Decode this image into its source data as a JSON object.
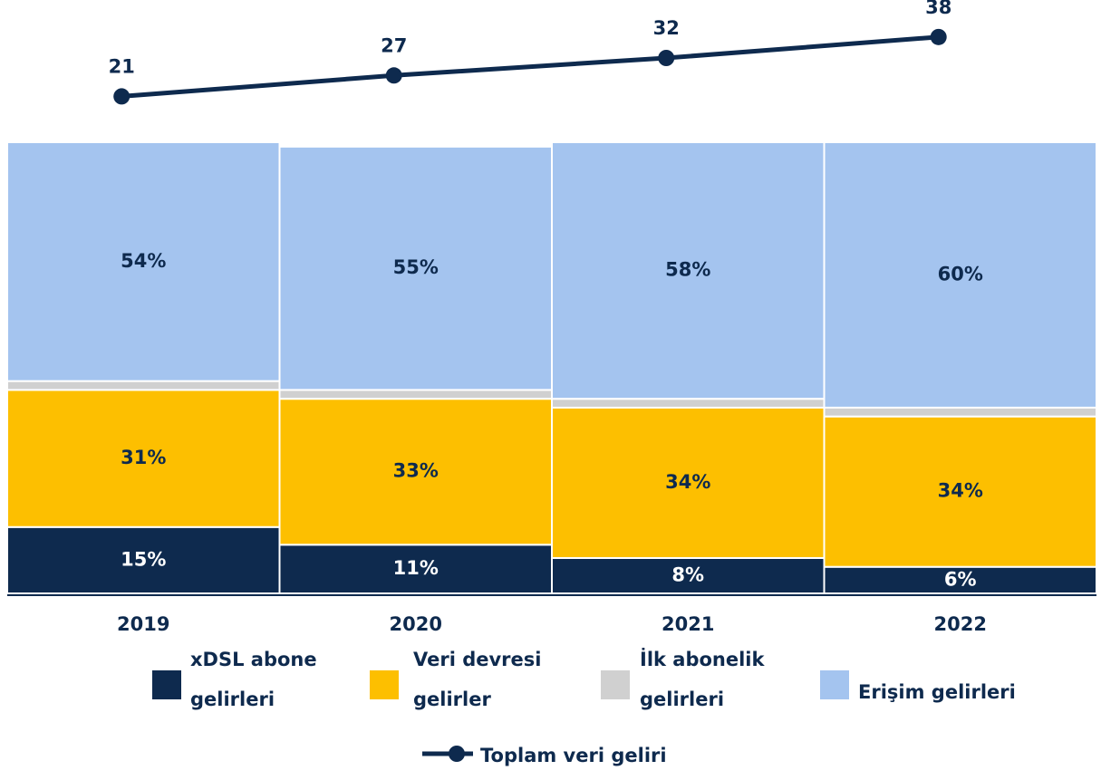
{
  "chart_data": {
    "type": "bar",
    "stacked": true,
    "categories": [
      "2019",
      "2020",
      "2021",
      "2022"
    ],
    "ylim": [
      0,
      102
    ],
    "y2lim": [
      11,
      46
    ],
    "series": [
      {
        "name": "xDSL abone gelirleri",
        "color": "#0e2a4e",
        "values": [
          15,
          11,
          8,
          6
        ],
        "value_labels": [
          "15%",
          "11%",
          "8%",
          "6%"
        ]
      },
      {
        "name": "Veri devresi gelirler",
        "color": "#fdbf00",
        "values": [
          31,
          33,
          34,
          34
        ],
        "value_labels": [
          "31%",
          "33%",
          "34%",
          "34%"
        ]
      },
      {
        "name": "İlk abonelik gelirleri",
        "color": "#d0d0d0",
        "values": [
          2,
          2,
          2,
          2
        ]
      },
      {
        "name": "Erişim gelirleri",
        "color": "#a4c4ef",
        "values": [
          54,
          55,
          58,
          60
        ],
        "value_labels": [
          "54%",
          "55%",
          "58%",
          "60%"
        ]
      },
      {
        "name": "Toplam veri geliri",
        "type": "line",
        "axis": "y2",
        "color": "#0e2a4e",
        "values": [
          21,
          27,
          32,
          38
        ]
      }
    ]
  }
}
